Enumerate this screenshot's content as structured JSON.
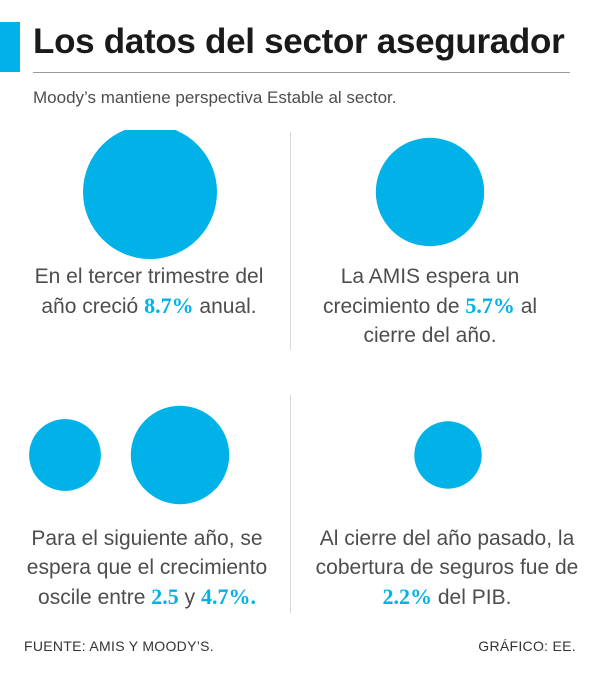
{
  "header": {
    "title": "Los datos del sector asegurador",
    "subtitle": "Moody’s mantiene perspectiva Estable al sector."
  },
  "colors": {
    "accent": "#00b2e8",
    "text": "#4d4d4d",
    "title": "#1a1a1a"
  },
  "chart_data": {
    "type": "bubble",
    "unit": "%",
    "panels": [
      {
        "values": [
          8.7
        ],
        "text_before": "En el tercer trimestre del año creció ",
        "value_label": "8.7%",
        "text_after": " anual."
      },
      {
        "values": [
          5.7
        ],
        "text_before": "La AMIS espera un crecimiento de ",
        "value_label": "5.7%",
        "text_after": " al cierre del año."
      },
      {
        "values": [
          2.5,
          4.7
        ],
        "text_before": "Para el siguiente año, se espera que el crecimiento oscile entre ",
        "value_label": "2.5",
        "text_middle": " y ",
        "value_label_2": "4.7%",
        "text_after": "."
      },
      {
        "values": [
          2.2
        ],
        "text_before": "Al cierre del año pasado, la cobertura de seguros fue de ",
        "value_label": "2.2%",
        "text_after": " del PIB."
      }
    ]
  },
  "footer": {
    "source": "FUENTE: AMIS Y MOODY’S.",
    "credit": "GRÁFICO: EE."
  }
}
